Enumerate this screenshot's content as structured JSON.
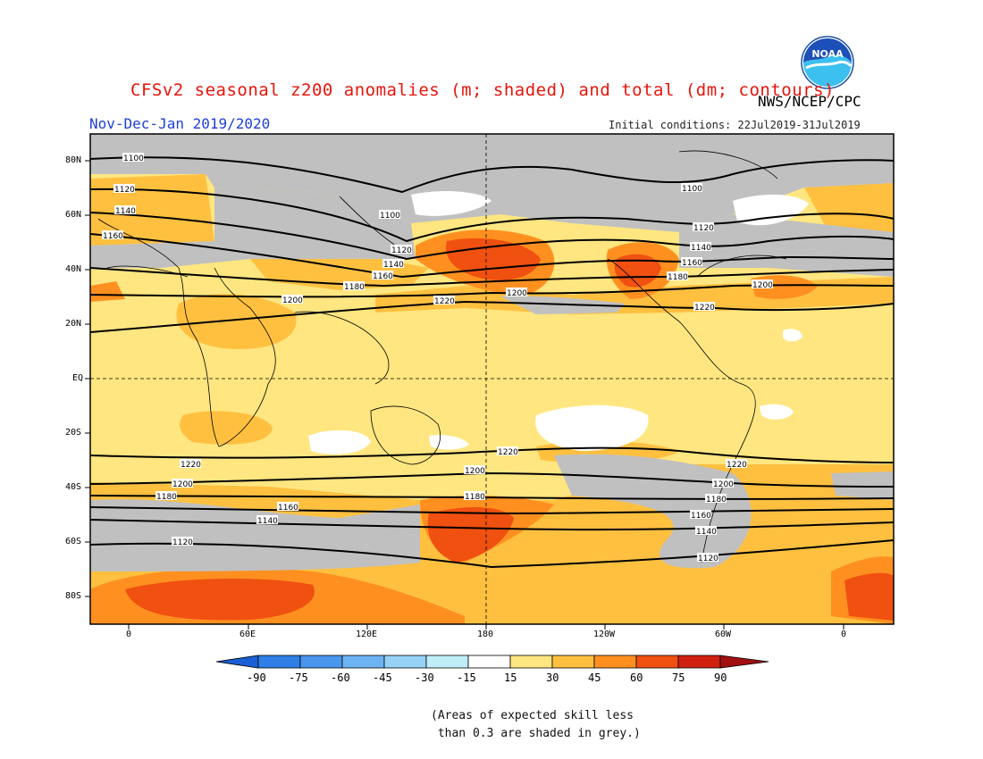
{
  "header": {
    "title": "CFSv2 seasonal z200 anomalies (m; shaded) and total (dm; contours)",
    "agency": "NWS/NCEP/CPC",
    "period": "Nov-Dec-Jan 2019/2020",
    "initial_conditions": "Initial conditions: 22Jul2019-31Jul2019"
  },
  "logo": {
    "icon": "noaa-logo-icon",
    "text": "NOAA"
  },
  "axes": {
    "lat_labels": [
      "80N",
      "60N",
      "40N",
      "20N",
      "EQ",
      "20S",
      "40S",
      "60S",
      "80S"
    ],
    "lon_labels": [
      "0",
      "60E",
      "120E",
      "180",
      "120W",
      "60W",
      "0"
    ]
  },
  "contour_labels": [
    "1100",
    "1120",
    "1140",
    "1160",
    "1180",
    "1200",
    "1220"
  ],
  "colorbar": {
    "ticks": [
      "-90",
      "-75",
      "-60",
      "-45",
      "-30",
      "-15",
      "15",
      "30",
      "45",
      "60",
      "75",
      "90"
    ],
    "colors": [
      "#1a5fd6",
      "#2f7ee6",
      "#4a95ee",
      "#6db4f4",
      "#95d2f6",
      "#bfeef8",
      "#ffffff",
      "#ffe680",
      "#ffc040",
      "#ff9020",
      "#f05010",
      "#d02010",
      "#a01010"
    ]
  },
  "skill_note": "(Areas of expected skill less\n than 0.3 are shaded in grey.)",
  "colors": {
    "title": "#e8140a",
    "period": "#1f3fd6",
    "skill_grey": "#c0c0c0",
    "anomaly_15_30": "#ffe680",
    "anomaly_30_45": "#ffc040",
    "anomaly_45_60": "#ff9020",
    "anomaly_60_75": "#f05010"
  }
}
